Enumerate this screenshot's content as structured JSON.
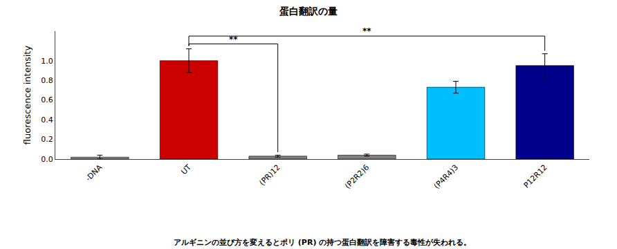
{
  "chart_data": {
    "type": "bar",
    "title": "蛋白翻訳の量",
    "subtitle": "アルギニンの並び方を変えるとポリ (PR) の持つ蛋白翻訳を障害する毒性が失われる。",
    "y_label": "fluorescence intensity",
    "categories": [
      "-DNA",
      "UT",
      "(PR)12",
      "(P2R2)6",
      "(P4R4)3",
      "P12R12"
    ],
    "values": [
      0.02,
      1.0,
      0.03,
      0.04,
      0.73,
      0.95
    ],
    "errors": [
      0.02,
      0.12,
      0.01,
      0.01,
      0.06,
      0.12
    ],
    "colors": [
      "#808080",
      "#CC0000",
      "#808080",
      "#808080",
      "#00BFFF",
      "#00008B"
    ],
    "ylim": [
      0,
      1.3
    ],
    "yticks": [
      {
        "value": 0,
        "label": "0.0"
      },
      0.2,
      0.4,
      0.6,
      0.8,
      {
        "value": 1,
        "label": "1.0"
      }
    ],
    "grid": false,
    "annotations": [
      {
        "text": "**",
        "from": "UT",
        "to": "(PR)12",
        "y": 1.17
      },
      {
        "text": "**",
        "from": "UT",
        "to": "P12R12",
        "y": 1.25
      }
    ]
  }
}
